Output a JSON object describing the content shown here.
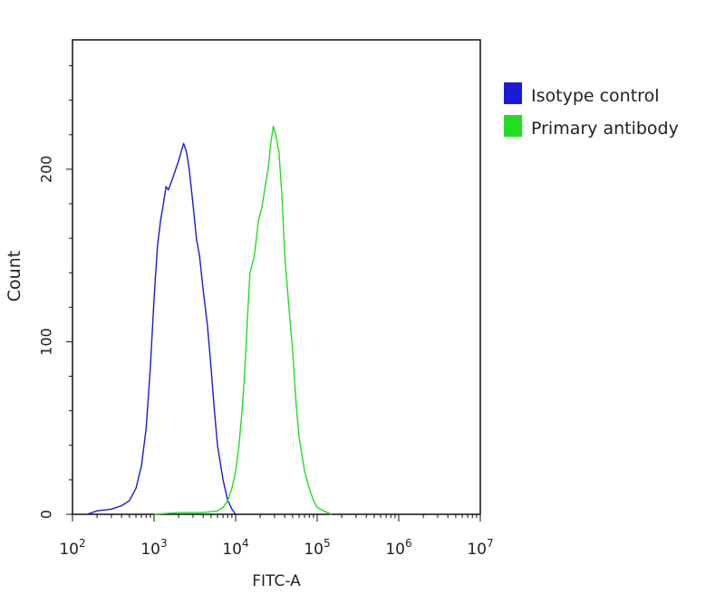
{
  "chart_data": {
    "type": "line",
    "xlabel": "FITC-A",
    "ylabel": "Count",
    "x_scale": "log",
    "xlim": [
      100,
      10000000
    ],
    "ylim": [
      0,
      275
    ],
    "x_ticks": [
      {
        "value": 100,
        "base": "10",
        "exp": "2"
      },
      {
        "value": 1000,
        "base": "10",
        "exp": "3"
      },
      {
        "value": 10000,
        "base": "10",
        "exp": "4"
      },
      {
        "value": 100000,
        "base": "10",
        "exp": "5"
      },
      {
        "value": 1000000,
        "base": "10",
        "exp": "6"
      },
      {
        "value": 10000000,
        "base": "10",
        "exp": "7"
      }
    ],
    "y_ticks": [
      {
        "value": 0,
        "label": "0"
      },
      {
        "value": 100,
        "label": "100"
      },
      {
        "value": 200,
        "label": "200"
      }
    ],
    "legend_position": "right",
    "series": [
      {
        "name": "Isotype control",
        "color": "#1b1bd6",
        "x": [
          150,
          200,
          300,
          400,
          500,
          600,
          700,
          800,
          900,
          1000,
          1100,
          1200,
          1300,
          1400,
          1500,
          1700,
          2000,
          2300,
          2500,
          2700,
          3000,
          3300,
          3600,
          4000,
          4500,
          5000,
          5500,
          6000,
          7000,
          8000,
          9000,
          10000
        ],
        "y": [
          0,
          2,
          3,
          5,
          8,
          15,
          28,
          50,
          85,
          125,
          155,
          170,
          180,
          190,
          188,
          195,
          205,
          215,
          210,
          200,
          180,
          160,
          150,
          130,
          110,
          85,
          60,
          40,
          20,
          8,
          3,
          0
        ]
      },
      {
        "name": "Primary antibody",
        "color": "#22dd22",
        "x": [
          1000,
          2000,
          4000,
          6000,
          7000,
          8000,
          9000,
          10000,
          11000,
          12000,
          13000,
          14000,
          15000,
          17000,
          19000,
          21000,
          23000,
          25000,
          27000,
          29000,
          31000,
          34000,
          37000,
          40000,
          45000,
          50000,
          55000,
          60000,
          70000,
          80000,
          90000,
          100000,
          120000,
          150000
        ],
        "y": [
          0,
          1,
          1,
          2,
          4,
          8,
          15,
          25,
          40,
          60,
          85,
          115,
          140,
          150,
          170,
          178,
          190,
          200,
          215,
          225,
          220,
          210,
          185,
          150,
          120,
          95,
          65,
          45,
          25,
          15,
          8,
          4,
          2,
          0
        ]
      }
    ]
  }
}
